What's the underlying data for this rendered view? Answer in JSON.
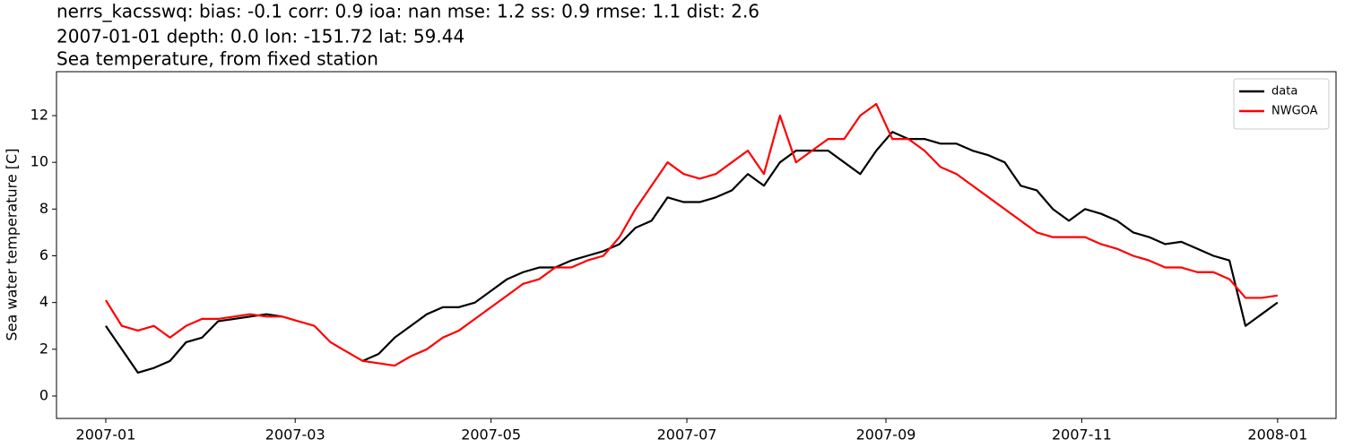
{
  "chart_data": {
    "type": "line",
    "title": "nerrs_kacsswq: bias: -0.1  corr: 0.9  ioa: nan  mse: 1.2  ss: 0.9  rmse: 1.1  dist: 2.6",
    "subtitle": "2007-01-01 depth: 0.0 lon: -151.72 lat: 59.44",
    "subtitle2": "Sea temperature, from fixed station",
    "ylabel": "Sea water temperature [C]",
    "x": [
      0,
      5,
      10,
      15,
      20,
      25,
      30,
      35,
      40,
      45,
      50,
      55,
      60,
      65,
      70,
      75,
      80,
      85,
      90,
      95,
      100,
      105,
      110,
      115,
      120,
      125,
      130,
      135,
      140,
      145,
      150,
      155,
      160,
      165,
      170,
      175,
      180,
      185,
      190,
      195,
      200,
      205,
      210,
      215,
      220,
      225,
      230,
      235,
      240,
      245,
      250,
      255,
      260,
      265,
      270,
      275,
      280,
      285,
      290,
      295,
      300,
      305,
      310,
      315,
      320,
      325,
      330,
      335,
      340,
      345,
      350,
      355,
      360,
      365
    ],
    "series": [
      {
        "name": "data",
        "color": "#000000",
        "values": [
          3.0,
          2.0,
          1.0,
          1.2,
          1.5,
          2.3,
          2.5,
          3.2,
          3.3,
          3.4,
          3.5,
          3.4,
          null,
          null,
          null,
          null,
          1.5,
          1.8,
          2.5,
          3.0,
          3.5,
          3.8,
          3.8,
          4.0,
          4.5,
          5.0,
          5.3,
          5.5,
          5.5,
          5.8,
          6.0,
          6.2,
          6.5,
          7.2,
          7.5,
          8.5,
          8.3,
          8.3,
          8.5,
          8.8,
          9.5,
          9.0,
          10.0,
          10.5,
          10.5,
          10.5,
          10.0,
          9.5,
          10.5,
          11.3,
          11.0,
          11.0,
          10.8,
          10.8,
          10.5,
          10.3,
          10.0,
          9.0,
          8.8,
          8.0,
          7.5,
          8.0,
          7.8,
          7.5,
          7.0,
          6.8,
          6.5,
          6.6,
          6.3,
          6.0,
          5.8,
          3.0,
          3.5,
          4.0
        ]
      },
      {
        "name": "NWGOA",
        "color": "#ff0000",
        "values": [
          4.1,
          3.0,
          2.8,
          3.0,
          2.5,
          3.0,
          3.3,
          3.3,
          3.4,
          3.5,
          3.4,
          3.4,
          3.2,
          3.0,
          2.3,
          1.9,
          1.5,
          1.4,
          1.3,
          1.7,
          2.0,
          2.5,
          2.8,
          3.3,
          3.8,
          4.3,
          4.8,
          5.0,
          5.5,
          5.5,
          5.8,
          6.0,
          6.8,
          8.0,
          9.0,
          10.0,
          9.5,
          9.3,
          9.5,
          10.0,
          10.5,
          9.5,
          12.0,
          10.0,
          10.5,
          11.0,
          11.0,
          12.0,
          12.5,
          11.0,
          11.0,
          10.5,
          9.8,
          9.5,
          9.0,
          8.5,
          8.0,
          7.5,
          7.0,
          6.8,
          6.8,
          6.8,
          6.5,
          6.3,
          6.0,
          5.8,
          5.5,
          5.5,
          5.3,
          5.3,
          5.0,
          4.2,
          4.2,
          4.3
        ]
      }
    ],
    "xlim": [
      -15.35,
      383.2
    ],
    "xticks": [
      {
        "value": 0,
        "label": "2007-01"
      },
      {
        "value": 59,
        "label": "2007-03"
      },
      {
        "value": 120,
        "label": "2007-05"
      },
      {
        "value": 181,
        "label": "2007-07"
      },
      {
        "value": 243,
        "label": "2007-09"
      },
      {
        "value": 304,
        "label": "2007-11"
      },
      {
        "value": 365,
        "label": "2008-01"
      }
    ],
    "ylim": [
      -0.96,
      13.88
    ],
    "yticks": [
      0,
      2,
      4,
      6,
      8,
      10,
      12
    ],
    "legend": "upper right"
  }
}
